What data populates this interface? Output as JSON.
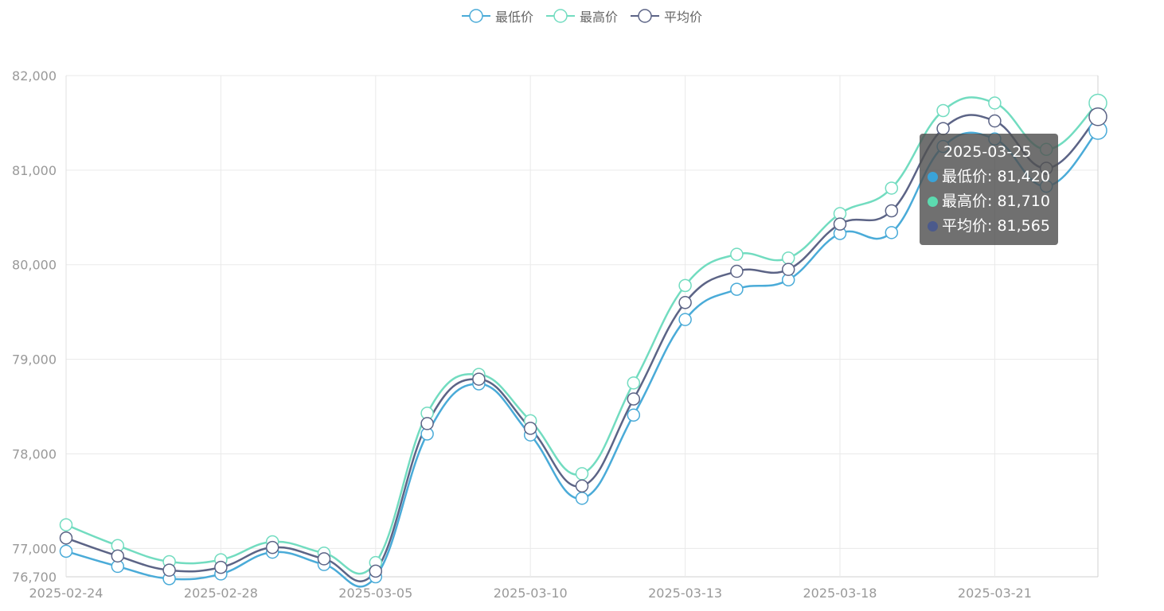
{
  "legend": {
    "low": {
      "label": "最低价",
      "color": "#4AABD8"
    },
    "high": {
      "label": "最高价",
      "color": "#72DCC0"
    },
    "avg": {
      "label": "平均价",
      "color": "#5C6486"
    }
  },
  "tooltip": {
    "date": "2025-03-25",
    "low_text": "最低价: 81,420",
    "high_text": "最高价: 81,710",
    "avg_text": "平均价: 81,565",
    "low_dot_color": "#3AA3D8",
    "high_dot_color": "#5CDBB0",
    "avg_dot_color": "#4B5A8C"
  },
  "chart_data": {
    "type": "line",
    "title": "",
    "xlabel": "",
    "ylabel": "",
    "x": [
      "2025-02-24",
      "2025-02-25",
      "2025-02-26",
      "2025-02-28",
      "2025-03-03",
      "2025-03-04",
      "2025-03-05",
      "2025-03-06",
      "2025-03-07",
      "2025-03-10",
      "2025-03-11",
      "2025-03-12",
      "2025-03-13",
      "2025-03-14",
      "2025-03-17",
      "2025-03-18",
      "2025-03-19",
      "2025-03-20",
      "2025-03-21",
      "2025-03-24",
      "2025-03-25"
    ],
    "x_tick_labels": [
      "2025-02-24",
      "2025-02-28",
      "2025-03-05",
      "2025-03-10",
      "2025-03-13",
      "2025-03-18",
      "2025-03-21"
    ],
    "x_tick_indices": [
      0,
      3,
      6,
      9,
      12,
      15,
      18
    ],
    "ylim": [
      76700,
      82000
    ],
    "y_ticks": [
      76700,
      77000,
      78000,
      79000,
      80000,
      81000,
      82000
    ],
    "y_tick_labels": [
      "76,700",
      "77,000",
      "78,000",
      "79,000",
      "80,000",
      "81,000",
      "82,000"
    ],
    "grid": true,
    "legend_position": "top-center",
    "highlighted_index": 20,
    "series": [
      {
        "name": "最低价",
        "color": "#4AABD8",
        "values": [
          76970,
          76810,
          76680,
          76730,
          76960,
          76830,
          76700,
          78210,
          78740,
          78200,
          77530,
          78410,
          79420,
          79740,
          79840,
          80330,
          80340,
          81250,
          81330,
          80830,
          81420
        ]
      },
      {
        "name": "最高价",
        "color": "#72DCC0",
        "values": [
          77250,
          77030,
          76860,
          76880,
          77070,
          76950,
          76850,
          78430,
          78840,
          78350,
          77790,
          78750,
          79780,
          80110,
          80070,
          80540,
          80810,
          81630,
          81710,
          81220,
          81710
        ]
      },
      {
        "name": "平均价",
        "color": "#5C6486",
        "values": [
          77110,
          76920,
          76770,
          76800,
          77010,
          76890,
          76760,
          78320,
          78790,
          78270,
          77660,
          78580,
          79600,
          79930,
          79950,
          80430,
          80570,
          81440,
          81520,
          81020,
          81565
        ]
      }
    ]
  }
}
